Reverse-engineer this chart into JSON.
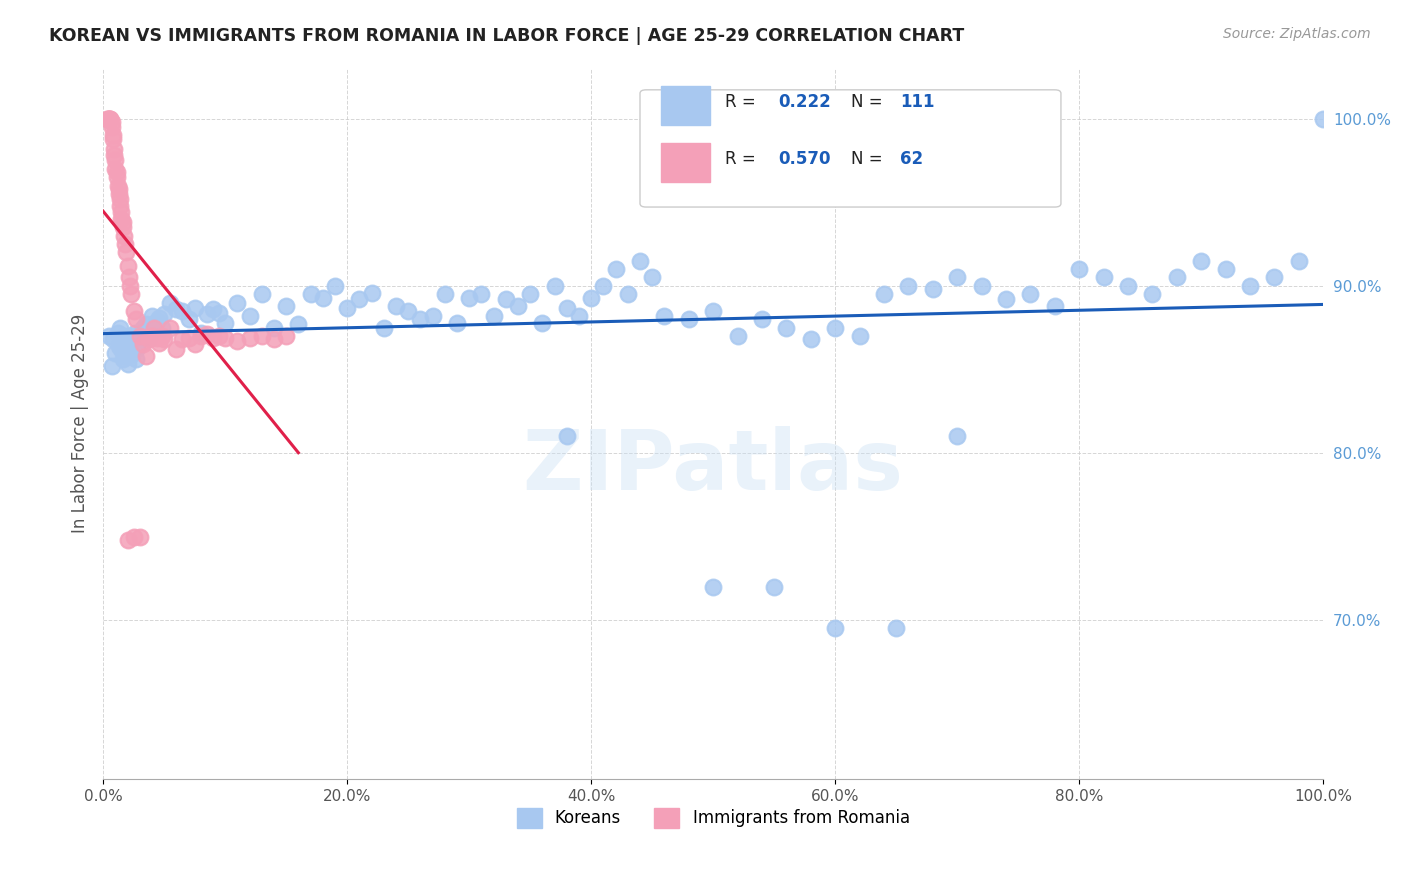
{
  "title": "KOREAN VS IMMIGRANTS FROM ROMANIA IN LABOR FORCE | AGE 25-29 CORRELATION CHART",
  "source": "Source: ZipAtlas.com",
  "ylabel": "In Labor Force | Age 25-29",
  "xlim": [
    0.0,
    1.0
  ],
  "ylim": [
    0.605,
    1.03
  ],
  "xticks": [
    0.0,
    0.2,
    0.4,
    0.6,
    0.8,
    1.0
  ],
  "xtick_labels": [
    "0.0%",
    "20.0%",
    "40.0%",
    "60.0%",
    "80.0%",
    "100.0%"
  ],
  "ytick_positions": [
    0.7,
    0.8,
    0.9,
    1.0
  ],
  "ytick_labels": [
    "70.0%",
    "80.0%",
    "90.0%",
    "100.0%"
  ],
  "korean_color": "#a8c8f0",
  "romania_color": "#f4a0b8",
  "korean_line_color": "#1a5cb8",
  "romania_line_color": "#e0204a",
  "korean_R": "0.222",
  "korean_N": "111",
  "romania_R": "0.570",
  "romania_N": "62",
  "watermark": "ZIPatlas",
  "background_color": "#ffffff",
  "korean_x": [
    0.005,
    0.007,
    0.008,
    0.01,
    0.012,
    0.013,
    0.014,
    0.015,
    0.016,
    0.017,
    0.018,
    0.019,
    0.02,
    0.021,
    0.022,
    0.023,
    0.024,
    0.025,
    0.026,
    0.027,
    0.028,
    0.03,
    0.032,
    0.033,
    0.035,
    0.038,
    0.04,
    0.042,
    0.044,
    0.046,
    0.048,
    0.05,
    0.055,
    0.06,
    0.065,
    0.07,
    0.075,
    0.08,
    0.085,
    0.09,
    0.095,
    0.1,
    0.11,
    0.12,
    0.13,
    0.14,
    0.15,
    0.16,
    0.17,
    0.18,
    0.19,
    0.2,
    0.21,
    0.22,
    0.23,
    0.24,
    0.25,
    0.26,
    0.27,
    0.28,
    0.29,
    0.3,
    0.31,
    0.32,
    0.33,
    0.34,
    0.35,
    0.36,
    0.37,
    0.38,
    0.39,
    0.4,
    0.41,
    0.42,
    0.43,
    0.44,
    0.45,
    0.46,
    0.48,
    0.5,
    0.52,
    0.54,
    0.56,
    0.58,
    0.6,
    0.62,
    0.64,
    0.66,
    0.68,
    0.7,
    0.72,
    0.74,
    0.76,
    0.78,
    0.8,
    0.82,
    0.84,
    0.86,
    0.88,
    0.9,
    0.92,
    0.94,
    0.96,
    0.98,
    1.0,
    0.5,
    0.55,
    0.6,
    0.65,
    0.7,
    0.38
  ],
  "korean_y": [
    0.87,
    0.852,
    0.868,
    0.86,
    0.872,
    0.864,
    0.875,
    0.862,
    0.856,
    0.87,
    0.858,
    0.864,
    0.853,
    0.862,
    0.87,
    0.867,
    0.859,
    0.868,
    0.872,
    0.856,
    0.863,
    0.868,
    0.873,
    0.875,
    0.877,
    0.869,
    0.882,
    0.876,
    0.879,
    0.881,
    0.875,
    0.883,
    0.89,
    0.886,
    0.885,
    0.88,
    0.887,
    0.872,
    0.883,
    0.886,
    0.884,
    0.878,
    0.89,
    0.882,
    0.895,
    0.875,
    0.888,
    0.877,
    0.895,
    0.893,
    0.9,
    0.887,
    0.892,
    0.896,
    0.875,
    0.888,
    0.885,
    0.88,
    0.882,
    0.895,
    0.878,
    0.893,
    0.895,
    0.882,
    0.892,
    0.888,
    0.895,
    0.878,
    0.9,
    0.887,
    0.882,
    0.893,
    0.9,
    0.91,
    0.895,
    0.915,
    0.905,
    0.882,
    0.88,
    0.885,
    0.87,
    0.88,
    0.875,
    0.868,
    0.875,
    0.87,
    0.895,
    0.9,
    0.898,
    0.905,
    0.9,
    0.892,
    0.895,
    0.888,
    0.91,
    0.905,
    0.9,
    0.895,
    0.905,
    0.915,
    0.91,
    0.9,
    0.905,
    0.915,
    1.0,
    0.72,
    0.72,
    0.695,
    0.695,
    0.81,
    0.81
  ],
  "romania_x": [
    0.003,
    0.004,
    0.005,
    0.005,
    0.006,
    0.006,
    0.007,
    0.007,
    0.008,
    0.008,
    0.009,
    0.009,
    0.01,
    0.01,
    0.011,
    0.011,
    0.012,
    0.013,
    0.013,
    0.014,
    0.014,
    0.015,
    0.015,
    0.016,
    0.016,
    0.017,
    0.018,
    0.019,
    0.02,
    0.021,
    0.022,
    0.023,
    0.025,
    0.027,
    0.03,
    0.033,
    0.035,
    0.038,
    0.04,
    0.042,
    0.044,
    0.046,
    0.048,
    0.05,
    0.055,
    0.06,
    0.065,
    0.07,
    0.075,
    0.08,
    0.085,
    0.09,
    0.095,
    0.1,
    0.11,
    0.12,
    0.13,
    0.14,
    0.15,
    0.03,
    0.025,
    0.02
  ],
  "romania_y": [
    1.0,
    1.0,
    1.0,
    1.0,
    1.0,
    1.0,
    0.998,
    0.995,
    0.99,
    0.988,
    0.982,
    0.978,
    0.975,
    0.97,
    0.968,
    0.965,
    0.96,
    0.958,
    0.955,
    0.952,
    0.948,
    0.944,
    0.94,
    0.938,
    0.935,
    0.93,
    0.925,
    0.92,
    0.912,
    0.905,
    0.9,
    0.895,
    0.885,
    0.88,
    0.87,
    0.865,
    0.858,
    0.868,
    0.87,
    0.875,
    0.869,
    0.866,
    0.87,
    0.868,
    0.875,
    0.862,
    0.868,
    0.869,
    0.865,
    0.87,
    0.871,
    0.869,
    0.87,
    0.869,
    0.867,
    0.869,
    0.87,
    0.868,
    0.87,
    0.75,
    0.75,
    0.748
  ]
}
